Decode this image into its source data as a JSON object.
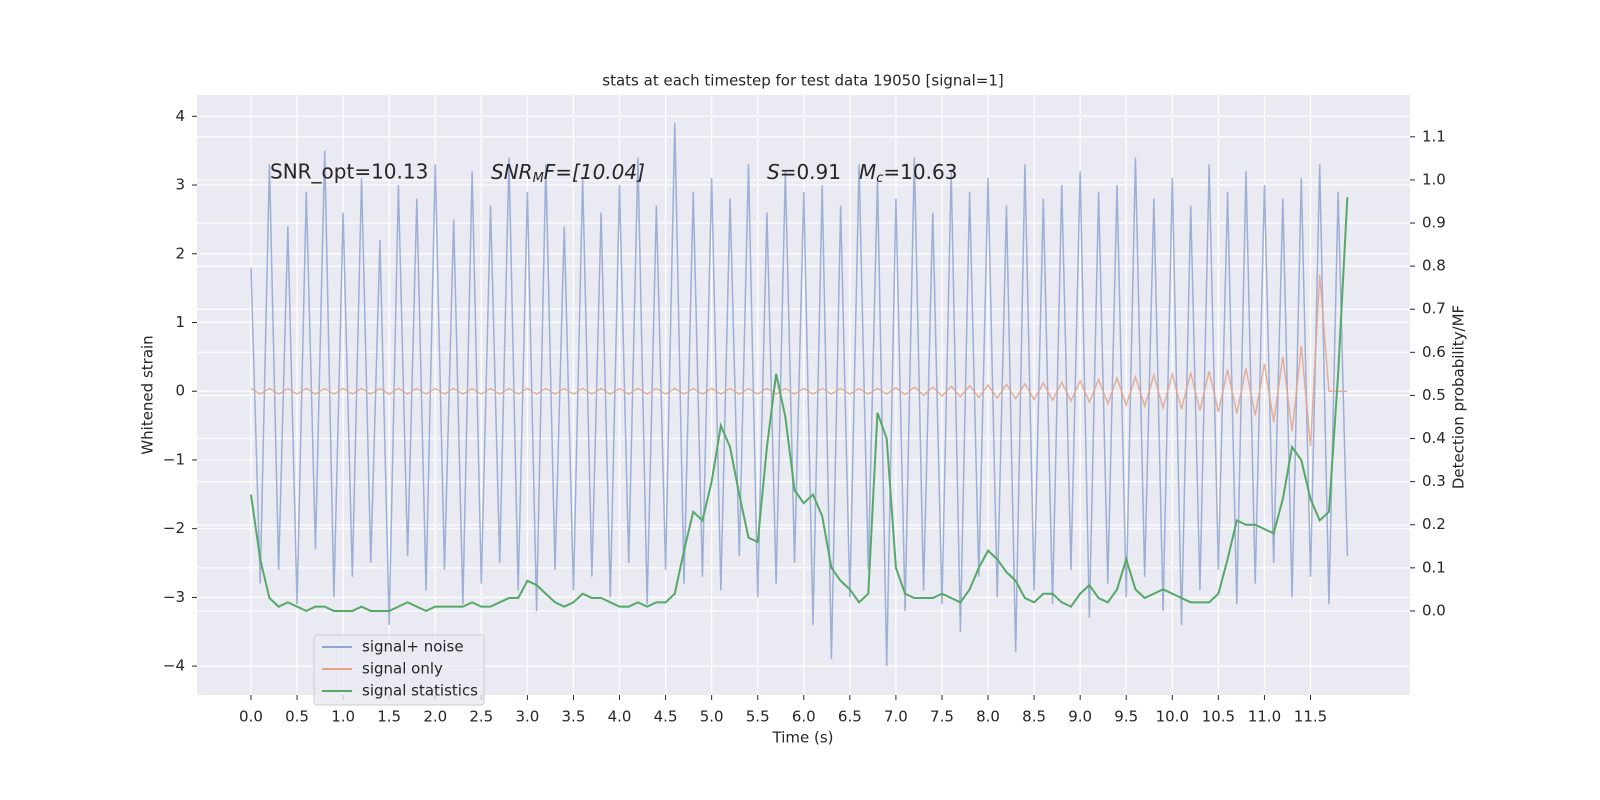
{
  "chart_data": {
    "type": "line",
    "title": "stats at each timestep for test data 19050 [signal=1]",
    "x_label": "Time (s)",
    "y_label": "Whitened strain",
    "y2_label": "Detection probability/MF",
    "annotations": [
      [
        "SNR_opt=10.13"
      ],
      [
        "SNR",
        "M",
        "F=[10.04]"
      ],
      [
        "S",
        "=0.91"
      ],
      [
        "M",
        "c",
        "=10.63"
      ]
    ],
    "xlim": [
      -0.586,
      12.58
    ],
    "ylim": [
      -4.42,
      4.31
    ],
    "y2lim": [
      -0.195,
      1.197
    ],
    "xticks": [
      {
        "value": 0,
        "label": "0.0"
      },
      0.5,
      {
        "value": 1,
        "label": "1.0"
      },
      1.5,
      {
        "value": 2,
        "label": "2.0"
      },
      2.5,
      {
        "value": 3,
        "label": "3.0"
      },
      3.5,
      {
        "value": 4,
        "label": "4.0"
      },
      4.5,
      {
        "value": 5,
        "label": "5.0"
      },
      5.5,
      {
        "value": 6,
        "label": "6.0"
      },
      6.5,
      {
        "value": 7,
        "label": "7.0"
      },
      7.5,
      {
        "value": 8,
        "label": "8.0"
      },
      8.5,
      {
        "value": 9,
        "label": "9.0"
      },
      9.5,
      {
        "value": 10,
        "label": "10.0"
      },
      10.5,
      {
        "value": 11,
        "label": "11.0"
      },
      11.5
    ],
    "yticks": [
      {
        "value": -4,
        "label": "−4"
      },
      {
        "value": -3,
        "label": "−3"
      },
      {
        "value": -2,
        "label": "−2"
      },
      {
        "value": -1,
        "label": "−1"
      },
      0,
      1,
      2,
      3,
      4
    ],
    "y2ticks": [
      {
        "value": 0,
        "label": "0.0"
      },
      0.1,
      0.2,
      0.3,
      0.4,
      0.5,
      0.6,
      0.7,
      0.8,
      0.9,
      {
        "value": 1,
        "label": "1.0"
      },
      1.1
    ],
    "grid": true,
    "legend": "lower left",
    "x": [
      0.0,
      0.1,
      0.2,
      0.3,
      0.4,
      0.5,
      0.6,
      0.7,
      0.8,
      0.9,
      1.0,
      1.1,
      1.2,
      1.3,
      1.4,
      1.5,
      1.6,
      1.7,
      1.8,
      1.9,
      2.0,
      2.1,
      2.2,
      2.3,
      2.4,
      2.5,
      2.6,
      2.7,
      2.8,
      2.9,
      3.0,
      3.1,
      3.2,
      3.3,
      3.4,
      3.5,
      3.6,
      3.7,
      3.8,
      3.9,
      4.0,
      4.1,
      4.2,
      4.3,
      4.4,
      4.5,
      4.6,
      4.7,
      4.8,
      4.9,
      5.0,
      5.1,
      5.2,
      5.3,
      5.4,
      5.5,
      5.6,
      5.7,
      5.8,
      5.9,
      6.0,
      6.1,
      6.2,
      6.3,
      6.4,
      6.5,
      6.6,
      6.7,
      6.8,
      6.9,
      7.0,
      7.1,
      7.2,
      7.3,
      7.4,
      7.5,
      7.6,
      7.7,
      7.8,
      7.9,
      8.0,
      8.1,
      8.2,
      8.3,
      8.4,
      8.5,
      8.6,
      8.7,
      8.8,
      8.9,
      9.0,
      9.1,
      9.2,
      9.3,
      9.4,
      9.5,
      9.6,
      9.7,
      9.8,
      9.9,
      10.0,
      10.1,
      10.2,
      10.3,
      10.4,
      10.5,
      10.6,
      10.7,
      10.8,
      10.9,
      11.0,
      11.1,
      11.2,
      11.3,
      11.4,
      11.5,
      11.6,
      11.7,
      11.8,
      11.9
    ],
    "series": [
      {
        "name": "signal+ noise",
        "color": "#8fa5d0",
        "axis": "y",
        "values": [
          1.8,
          -2.8,
          3.3,
          -2.6,
          2.4,
          -3.1,
          2.9,
          -2.3,
          3.5,
          -3.0,
          2.6,
          -2.7,
          3.1,
          -2.5,
          2.2,
          -3.4,
          3.0,
          -2.4,
          2.8,
          -2.9,
          3.3,
          -2.6,
          2.5,
          -3.1,
          3.2,
          -2.8,
          2.7,
          -2.5,
          3.4,
          -2.9,
          2.9,
          -3.2,
          3.3,
          -2.6,
          2.4,
          -2.9,
          3.1,
          -2.7,
          2.6,
          -3.0,
          3.0,
          -2.5,
          3.4,
          -3.1,
          2.7,
          -2.6,
          3.9,
          -2.8,
          2.9,
          -2.7,
          3.1,
          -2.9,
          2.8,
          -2.4,
          3.3,
          -3.0,
          2.6,
          -2.8,
          3.2,
          -2.5,
          2.9,
          -3.4,
          3.0,
          -3.9,
          2.7,
          -3.0,
          3.3,
          -2.6,
          3.1,
          -4.0,
          2.8,
          -3.2,
          3.4,
          -2.9,
          2.6,
          -3.1,
          3.2,
          -3.5,
          2.9,
          -2.7,
          3.1,
          -3.0,
          2.7,
          -3.8,
          3.3,
          -2.9,
          2.8,
          -3.1,
          3.0,
          -2.6,
          3.2,
          -3.3,
          2.9,
          -2.8,
          3.0,
          -3.0,
          3.4,
          -2.7,
          2.8,
          -3.2,
          3.1,
          -3.4,
          2.7,
          -2.9,
          3.3,
          -2.6,
          2.9,
          -3.1,
          3.2,
          -2.8,
          3.0,
          -2.5,
          2.8,
          -3.0,
          3.1,
          -2.7,
          3.3,
          -3.1,
          2.9,
          -2.4
        ]
      },
      {
        "name": "signal only",
        "color": "#e3a48a",
        "axis": "y",
        "values": [
          0.04,
          -0.04,
          0.04,
          -0.04,
          0.04,
          -0.04,
          0.04,
          -0.04,
          0.04,
          -0.04,
          0.04,
          -0.04,
          0.04,
          -0.04,
          0.04,
          -0.04,
          0.04,
          -0.04,
          0.04,
          -0.04,
          0.04,
          -0.04,
          0.04,
          -0.04,
          0.04,
          -0.04,
          0.04,
          -0.04,
          0.04,
          -0.04,
          0.04,
          -0.04,
          0.04,
          -0.04,
          0.04,
          -0.04,
          0.04,
          -0.04,
          0.04,
          -0.04,
          0.04,
          -0.04,
          0.04,
          -0.04,
          0.04,
          -0.04,
          0.04,
          -0.04,
          0.04,
          -0.04,
          0.04,
          -0.04,
          0.04,
          -0.04,
          0.04,
          -0.04,
          0.04,
          -0.04,
          0.04,
          -0.04,
          0.04,
          -0.04,
          0.04,
          -0.04,
          0.04,
          -0.04,
          0.04,
          -0.04,
          0.04,
          -0.04,
          0.05,
          -0.05,
          0.06,
          -0.06,
          0.06,
          -0.07,
          0.07,
          -0.08,
          0.08,
          -0.09,
          0.09,
          -0.1,
          0.1,
          -0.11,
          0.11,
          -0.12,
          0.12,
          -0.13,
          0.13,
          -0.14,
          0.15,
          -0.16,
          0.17,
          -0.18,
          0.19,
          -0.2,
          0.21,
          -0.22,
          0.23,
          -0.24,
          0.25,
          -0.26,
          0.27,
          -0.28,
          0.29,
          -0.3,
          0.31,
          -0.32,
          0.33,
          -0.35,
          0.4,
          -0.45,
          0.5,
          -0.58,
          0.66,
          -0.8,
          1.7,
          0,
          0,
          0
        ]
      },
      {
        "name": "signal statistics",
        "color": "#55a868",
        "axis": "y2",
        "values": [
          0.27,
          0.12,
          0.03,
          0.01,
          0.02,
          0.01,
          0.0,
          0.01,
          0.01,
          0.0,
          0.0,
          0.0,
          0.01,
          0.0,
          0.0,
          0.0,
          0.01,
          0.02,
          0.01,
          0.0,
          0.01,
          0.01,
          0.01,
          0.01,
          0.02,
          0.01,
          0.01,
          0.02,
          0.03,
          0.03,
          0.07,
          0.06,
          0.04,
          0.02,
          0.01,
          0.02,
          0.04,
          0.03,
          0.03,
          0.02,
          0.01,
          0.01,
          0.02,
          0.01,
          0.02,
          0.02,
          0.04,
          0.14,
          0.23,
          0.21,
          0.3,
          0.43,
          0.38,
          0.27,
          0.17,
          0.16,
          0.38,
          0.55,
          0.45,
          0.28,
          0.25,
          0.27,
          0.22,
          0.1,
          0.07,
          0.05,
          0.02,
          0.04,
          0.46,
          0.4,
          0.1,
          0.04,
          0.03,
          0.03,
          0.03,
          0.04,
          0.03,
          0.02,
          0.05,
          0.1,
          0.14,
          0.12,
          0.09,
          0.07,
          0.03,
          0.02,
          0.04,
          0.04,
          0.02,
          0.01,
          0.04,
          0.06,
          0.03,
          0.02,
          0.05,
          0.12,
          0.05,
          0.03,
          0.04,
          0.05,
          0.04,
          0.03,
          0.02,
          0.02,
          0.02,
          0.04,
          0.12,
          0.21,
          0.2,
          0.2,
          0.19,
          0.18,
          0.26,
          0.38,
          0.35,
          0.26,
          0.21,
          0.23,
          0.55,
          0.96
        ]
      }
    ]
  }
}
